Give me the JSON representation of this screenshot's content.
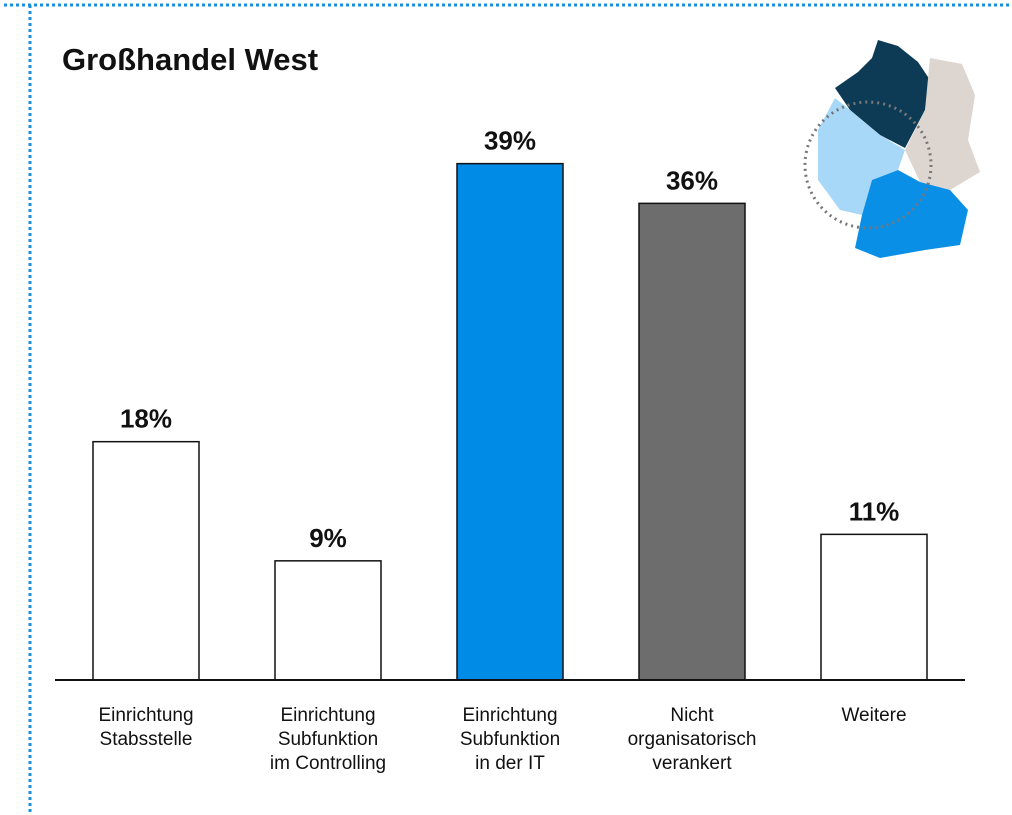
{
  "chart_data": {
    "type": "bar",
    "title": "Großhandel West",
    "categories": [
      "Einrichtung\nStabsstelle",
      "Einrichtung\nSubfunktion\nim Controlling",
      "Einrichtung\nSubfunktion\nin der IT",
      "Nicht\norganisatorisch\nverankert",
      "Weitere"
    ],
    "values": [
      18,
      9,
      39,
      36,
      11
    ],
    "value_labels": [
      "18%",
      "9%",
      "39%",
      "36%",
      "11%"
    ],
    "colors": [
      "#ffffff",
      "#ffffff",
      "#008be6",
      "#6d6d6d",
      "#ffffff"
    ],
    "ylim": [
      0,
      50
    ]
  }
}
